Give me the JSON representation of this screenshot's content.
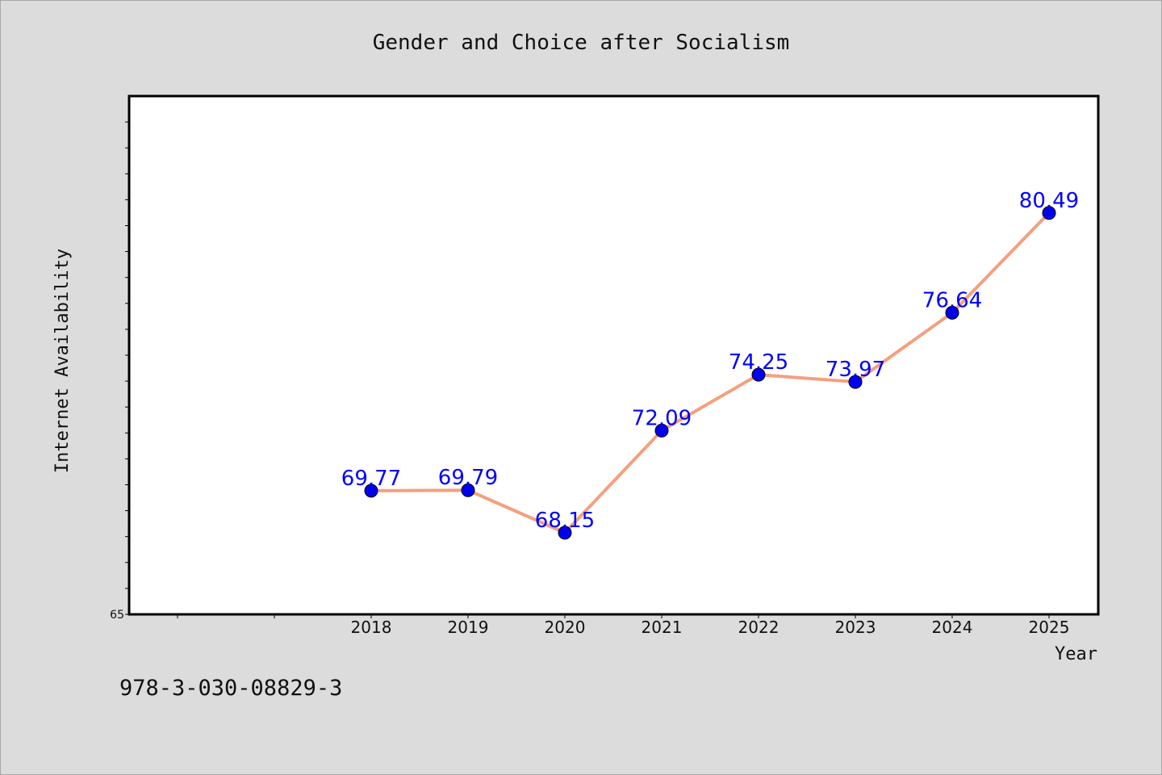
{
  "chart_data": {
    "type": "line",
    "title": "Gender and Choice after Socialism",
    "xlabel": "Year",
    "ylabel": "Internet Availability",
    "x": [
      "2018",
      "2019",
      "2020",
      "2021",
      "2022",
      "2023",
      "2024",
      "2025"
    ],
    "series": [
      {
        "values": [
          69.77,
          69.79,
          68.15,
          72.09,
          74.25,
          73.97,
          76.64,
          80.49
        ],
        "data_labels": [
          "69.77",
          "69.79",
          "68.15",
          "72.09",
          "74.25",
          "73.97",
          "76.64",
          "80.49"
        ]
      }
    ],
    "ylim": [
      65,
      85
    ],
    "y_tick_labels": [
      "65"
    ],
    "grid": false,
    "legend": "none",
    "colors": {
      "line": "#f4a07e",
      "marker": "#0000ee",
      "label": "#0000ff",
      "plot_background": "#ffffff",
      "page_background": "#dcdcdc"
    }
  },
  "footer": {
    "isbn": "978-3-030-08829-3"
  }
}
